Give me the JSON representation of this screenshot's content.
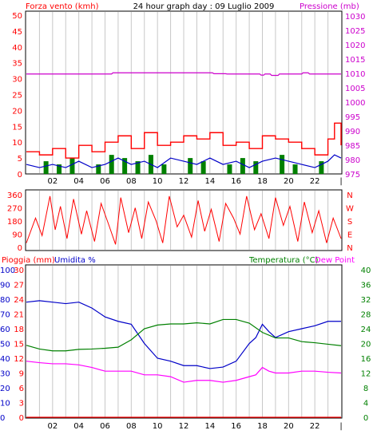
{
  "header": {
    "left_label": "Forza vento (kmh)",
    "title": "24 hour graph day : 09 Luglio 2009",
    "right_label": "Pressione (mb)"
  },
  "colors": {
    "wind": "#ff0000",
    "gust": "#ff0000",
    "pressure": "#cc00cc",
    "wind_dir": "#ff0000",
    "dew_point": "#ff00ff",
    "humidity": "#0000c8",
    "temperature": "#008000",
    "rain": "#ff0000",
    "green_bars": "#008000",
    "grid": "#c8c8c8",
    "frame": "#000000"
  },
  "chart_data": [
    {
      "id": "wind-pressure",
      "type": "line",
      "xlabel": "",
      "x_ticks": [
        "02",
        "04",
        "06",
        "08",
        "10",
        "12",
        "14",
        "16",
        "18",
        "20",
        "22",
        "|"
      ],
      "left_axis": {
        "label": "Forza vento (kmh)",
        "min": 0,
        "max": 50,
        "ticks": [
          0,
          5,
          10,
          15,
          20,
          25,
          30,
          35,
          40,
          45,
          50
        ]
      },
      "right_axis": {
        "label": "Pressione (mb)",
        "min": 975,
        "max": 1030,
        "ticks": [
          975,
          980,
          985,
          990,
          995,
          1000,
          1005,
          1010,
          1015,
          1020,
          1025,
          1030
        ]
      },
      "series": [
        {
          "axis": "right",
          "hours": [
            0,
            6.5,
            6.6,
            14.2,
            14.3,
            15.2,
            15.3,
            17.8,
            17.9,
            18.1,
            18.2,
            18.6,
            18.7,
            19.2,
            19.3,
            21.0,
            21.1,
            21.5,
            21.6,
            24
          ],
          "values": [
            1009.8,
            1009.8,
            1010.2,
            1010.2,
            1009.9,
            1009.9,
            1009.8,
            1009.8,
            1009.4,
            1009.4,
            1009.8,
            1009.8,
            1009.3,
            1009.3,
            1009.8,
            1009.8,
            1010.2,
            1010.2,
            1009.8,
            1009.8
          ]
        },
        {
          "axis": "left",
          "hours": [
            0,
            1,
            2,
            3,
            4,
            5,
            6,
            7,
            8,
            9,
            10,
            11,
            12,
            13,
            14,
            15,
            16,
            17,
            18,
            19,
            20,
            21,
            22,
            23,
            23.5,
            24
          ],
          "values": [
            3,
            2,
            3,
            2,
            4,
            2,
            3,
            5,
            3,
            4,
            2,
            5,
            4,
            3,
            5,
            3,
            4,
            2,
            4,
            5,
            4,
            3,
            2,
            4,
            6,
            5
          ]
        },
        {
          "axis": "left",
          "hours": [
            0,
            1,
            2,
            3,
            4,
            5,
            6,
            7,
            8,
            9,
            10,
            11,
            12,
            13,
            14,
            15,
            16,
            17,
            18,
            19,
            20,
            21,
            22,
            23,
            23.5,
            24
          ],
          "values": [
            7,
            6,
            8,
            5,
            9,
            7,
            10,
            12,
            8,
            13,
            9,
            10,
            12,
            11,
            13,
            9,
            10,
            8,
            12,
            11,
            10,
            8,
            6,
            11,
            16,
            9
          ]
        },
        {
          "axis": "left",
          "hours": [
            1.5,
            2.5,
            3.5,
            5.5,
            6.5,
            7.5,
            8.5,
            9.5,
            10.5,
            12.5,
            13.5,
            15.5,
            16.5,
            17.5,
            19.5,
            20.5,
            22.5
          ],
          "values": [
            4,
            3,
            5,
            3,
            6,
            5,
            4,
            6,
            3,
            5,
            4,
            3,
            5,
            4,
            6,
            3,
            4
          ]
        }
      ]
    },
    {
      "id": "wind-direction",
      "type": "line",
      "xlabel": "",
      "left_axis": {
        "label": "",
        "min": 0,
        "max": 360,
        "ticks": [
          0,
          90,
          180,
          270,
          360
        ]
      },
      "right_axis": {
        "label": "",
        "ticks": [
          "N",
          "W",
          "S",
          "E",
          "N"
        ]
      },
      "series": [
        {
          "hours": [
            0,
            0.7,
            1.2,
            1.8,
            2.2,
            2.6,
            3.1,
            3.6,
            4.2,
            4.6,
            5.2,
            5.7,
            6.3,
            6.8,
            7.2,
            7.8,
            8.3,
            8.8,
            9.3,
            9.9,
            10.4,
            10.9,
            11.5,
            12.0,
            12.6,
            13.1,
            13.6,
            14.1,
            14.7,
            15.2,
            15.8,
            16.3,
            16.8,
            17.4,
            17.9,
            18.5,
            19.0,
            19.6,
            20.1,
            20.7,
            21.2,
            21.8,
            22.3,
            22.9,
            23.4,
            24
          ],
          "values": [
            30,
            200,
            80,
            350,
            120,
            280,
            60,
            330,
            90,
            250,
            40,
            300,
            150,
            20,
            340,
            100,
            270,
            60,
            310,
            180,
            30,
            350,
            140,
            220,
            70,
            320,
            110,
            260,
            40,
            300,
            200,
            90,
            350,
            120,
            230,
            60,
            340,
            150,
            280,
            40,
            310,
            100,
            250,
            30,
            200,
            60
          ]
        }
      ]
    },
    {
      "id": "temp-humidity",
      "type": "line",
      "xlabel": "",
      "x_ticks": [
        "02",
        "04",
        "06",
        "08",
        "10",
        "12",
        "14",
        "16",
        "18",
        "20",
        "22",
        "|"
      ],
      "header_left": "Pioggia (mm)",
      "header_left2": "Umidita %",
      "header_right": "Temperatura (°C)",
      "header_right2": "Dew Point",
      "rain_axis": {
        "min": 0,
        "max": 30,
        "ticks": [
          0,
          3,
          6,
          9,
          12,
          15,
          18,
          21,
          24,
          27,
          30
        ]
      },
      "humidity_axis": {
        "min": 0,
        "max": 100,
        "ticks": [
          0,
          10,
          20,
          30,
          40,
          50,
          60,
          70,
          80,
          90,
          100
        ]
      },
      "temperature_axis": {
        "min": 0,
        "max": 40,
        "ticks": [
          0,
          4,
          8,
          12,
          16,
          20,
          24,
          28,
          32,
          36,
          40
        ]
      },
      "series": [
        {
          "name": "Umidita %",
          "axis": "humidity",
          "hours": [
            0,
            1,
            2,
            3,
            4,
            5,
            6,
            7,
            8,
            9,
            10,
            11,
            12,
            13,
            14,
            15,
            16,
            17,
            17.5,
            18,
            18.5,
            19,
            20,
            21,
            22,
            23,
            24
          ],
          "values": [
            78,
            79,
            78,
            77,
            78,
            74,
            68,
            65,
            63,
            50,
            40,
            38,
            35,
            35,
            33,
            34,
            38,
            50,
            54,
            63,
            58,
            54,
            58,
            60,
            62,
            65,
            65
          ]
        },
        {
          "name": "Temperatura",
          "axis": "temperature",
          "hours": [
            0,
            1,
            2,
            3,
            4,
            5,
            6,
            7,
            8,
            9,
            10,
            11,
            12,
            13,
            14,
            15,
            16,
            17,
            18,
            19,
            20,
            21,
            22,
            23,
            24
          ],
          "values": [
            19.5,
            18.5,
            18,
            18,
            18.4,
            18.5,
            18.7,
            19,
            21,
            24,
            25,
            25.3,
            25.3,
            25.6,
            25.3,
            26.5,
            26.5,
            25.5,
            23,
            21.5,
            21.5,
            20.5,
            20.2,
            19.8,
            19.4
          ]
        },
        {
          "name": "Dew Point",
          "axis": "temperature",
          "hours": [
            0,
            1,
            2,
            3,
            4,
            5,
            6,
            7,
            8,
            9,
            10,
            11,
            12,
            13,
            14,
            15,
            16,
            17,
            17.5,
            18,
            18.5,
            19,
            20,
            21,
            22,
            23,
            24
          ],
          "values": [
            15.2,
            14.8,
            14.5,
            14.5,
            14.2,
            13.5,
            12.5,
            12.5,
            12.5,
            11.5,
            11.5,
            11,
            9.5,
            10,
            10,
            9.5,
            10,
            11,
            11.5,
            13.5,
            12.5,
            12,
            12,
            12.5,
            12.5,
            12.2,
            12
          ]
        },
        {
          "name": "Pioggia",
          "axis": "rain",
          "hours": [
            0,
            24
          ],
          "values": [
            0,
            0
          ]
        }
      ]
    }
  ]
}
